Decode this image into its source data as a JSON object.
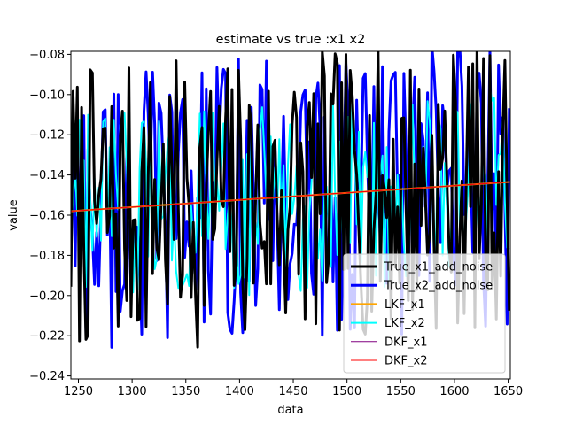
{
  "chart_data": {
    "type": "line",
    "title": "estimate vs true :x1 x2",
    "xlabel": "data",
    "ylabel": "value",
    "xlim": [
      1243,
      1652
    ],
    "ylim": [
      -0.2415,
      -0.0785
    ],
    "grid": false,
    "legend_position": "lower-right",
    "x_ticks": [
      1250,
      1300,
      1350,
      1400,
      1450,
      1500,
      1550,
      1600,
      1650
    ],
    "x_tick_labels": [
      "1250",
      "1300",
      "1350",
      "1400",
      "1450",
      "1500",
      "1550",
      "1600",
      "1650"
    ],
    "y_ticks": [
      -0.24,
      -0.22,
      -0.2,
      -0.18,
      -0.16,
      -0.14,
      -0.12,
      -0.1,
      -0.08
    ],
    "y_tick_labels": [
      "−0.24",
      "−0.22",
      "−0.20",
      "−0.18",
      "−0.16",
      "−0.14",
      "−0.12",
      "−0.10",
      "−0.08"
    ],
    "series": [
      {
        "name": "True_x1_add_noise",
        "color": "#000000",
        "width": 3,
        "kind": "noise",
        "x": [
          1243,
          1652
        ],
        "y": [
          -0.158,
          -0.144
        ]
      },
      {
        "name": "True_x2_add_noise",
        "color": "#0000ff",
        "width": 3,
        "kind": "noise",
        "x": [
          1243,
          1652
        ],
        "y": [
          -0.158,
          -0.144
        ]
      },
      {
        "name": "LKF_x1",
        "color": "#ffa500",
        "width": 2,
        "kind": "smooth",
        "x": [
          1243,
          1652
        ],
        "y": [
          -0.158,
          -0.1435
        ]
      },
      {
        "name": "LKF_x2",
        "color": "#00ffff",
        "width": 2,
        "kind": "noise",
        "x": [
          1243,
          1652
        ],
        "y": [
          -0.158,
          -0.144
        ]
      },
      {
        "name": "DKF_x1",
        "color": "#800080",
        "width": 1,
        "kind": "smooth",
        "x": [
          1243,
          1652
        ],
        "y": [
          -0.158,
          -0.1435
        ]
      },
      {
        "name": "DKF_x2",
        "color": "#ff0000",
        "width": 1,
        "kind": "smooth",
        "x": [
          1243,
          1652
        ],
        "y": [
          -0.158,
          -0.1435
        ]
      }
    ]
  }
}
